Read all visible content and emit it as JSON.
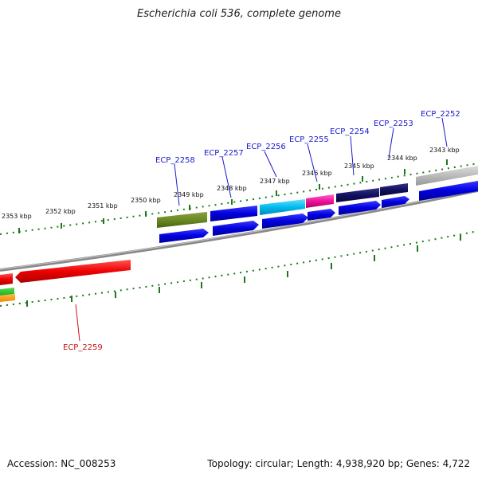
{
  "title": "Escherichia coli 536, complete genome",
  "footer": {
    "accession": "Accession: NC_008253",
    "summary": "Topology: circular; Length: 4,938,920 bp; Genes: 4,722"
  },
  "colors": {
    "backbone": "#777777",
    "tick": "#1a7a1a",
    "label_blue": "#1a1acc",
    "label_red": "#cc1111"
  },
  "axis_labels": [
    "2343 kbp",
    "2344 kbp",
    "2345 kbp",
    "2346 kbp",
    "2347 kbp",
    "2348 kbp",
    "2349 kbp",
    "2350 kbp",
    "2351 kbp",
    "2352 kbp",
    "2353 kbp"
  ],
  "gene_labels": [
    {
      "name": "ECP_2252",
      "color": "#1a1acc"
    },
    {
      "name": "ECP_2253",
      "color": "#1a1acc"
    },
    {
      "name": "ECP_2254",
      "color": "#1a1acc"
    },
    {
      "name": "ECP_2255",
      "color": "#1a1acc"
    },
    {
      "name": "ECP_2256",
      "color": "#1a1acc"
    },
    {
      "name": "ECP_2257",
      "color": "#1a1acc"
    },
    {
      "name": "ECP_2258",
      "color": "#1a1acc"
    },
    {
      "name": "ECP_2259",
      "color": "#cc1111"
    }
  ]
}
